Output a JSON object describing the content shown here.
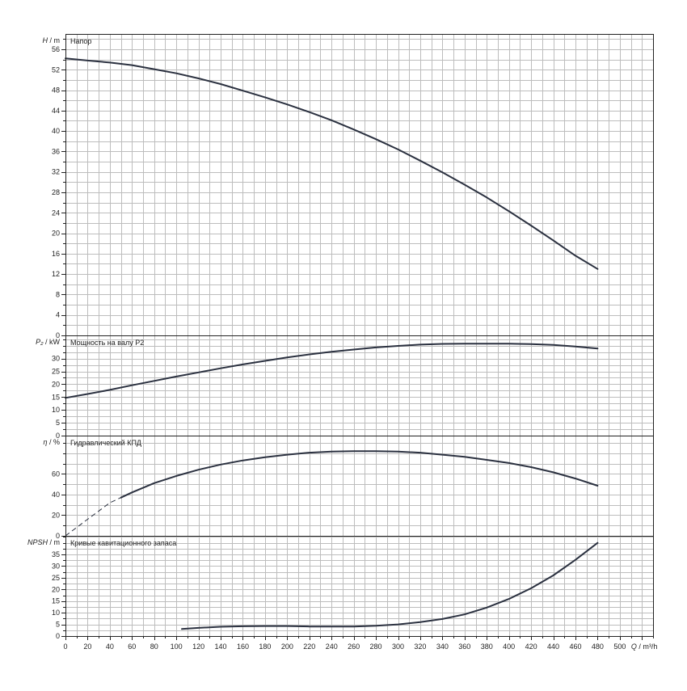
{
  "chart_data": [
    {
      "type": "line",
      "title": "Напор",
      "ylabel_sym": "H",
      "ylabel_unit": "/ m",
      "ylim": [
        0,
        59
      ],
      "yticks": [
        0,
        4,
        8,
        12,
        16,
        20,
        24,
        28,
        32,
        36,
        40,
        44,
        48,
        52,
        56
      ],
      "grid": true,
      "series": [
        {
          "x": [
            0,
            20,
            40,
            60,
            80,
            100,
            120,
            140,
            160,
            180,
            200,
            220,
            240,
            260,
            280,
            300,
            320,
            340,
            360,
            380,
            400,
            420,
            440,
            460,
            480
          ],
          "y": [
            54.2,
            53.8,
            53.4,
            52.9,
            52.1,
            51.3,
            50.3,
            49.2,
            47.9,
            46.6,
            45.2,
            43.7,
            42.1,
            40.3,
            38.4,
            36.4,
            34.2,
            31.9,
            29.5,
            27.0,
            24.3,
            21.5,
            18.6,
            15.6,
            13.0
          ]
        }
      ]
    },
    {
      "type": "line",
      "title": "Мощность на валу P2",
      "ylabel_sym": "P₂",
      "ylabel_unit": "/ kW",
      "ylim": [
        0,
        39
      ],
      "yticks": [
        0,
        5,
        10,
        15,
        20,
        25,
        30
      ],
      "grid": true,
      "series": [
        {
          "x": [
            0,
            20,
            40,
            60,
            80,
            100,
            120,
            140,
            160,
            180,
            200,
            220,
            240,
            260,
            280,
            300,
            320,
            340,
            360,
            380,
            400,
            420,
            440,
            460,
            480
          ],
          "y": [
            14.7,
            16.2,
            17.8,
            19.6,
            21.3,
            23.0,
            24.6,
            26.2,
            27.7,
            29.1,
            30.4,
            31.6,
            32.6,
            33.5,
            34.3,
            34.9,
            35.4,
            35.7,
            35.8,
            35.8,
            35.8,
            35.6,
            35.3,
            34.7,
            33.9
          ]
        }
      ]
    },
    {
      "type": "line",
      "title": "Гидравлический КПД",
      "ylabel_sym": "η",
      "ylabel_unit": "/ %",
      "ylim": [
        0,
        97
      ],
      "yticks": [
        0,
        20,
        40,
        60
      ],
      "grid": true,
      "series": [
        {
          "style": "dashed",
          "x": [
            0,
            10,
            20,
            30,
            40,
            50
          ],
          "y": [
            0,
            8,
            16,
            24,
            32,
            37
          ]
        },
        {
          "style": "solid",
          "x": [
            50,
            60,
            80,
            100,
            120,
            140,
            160,
            180,
            200,
            220,
            240,
            260,
            280,
            300,
            320,
            340,
            360,
            380,
            400,
            420,
            440,
            460,
            480
          ],
          "y": [
            37,
            42,
            51,
            58,
            64,
            69,
            73,
            76,
            78.5,
            80.5,
            81.5,
            82,
            82,
            81.5,
            80.5,
            78.5,
            76.5,
            73.5,
            70.5,
            66.5,
            61.5,
            55.5,
            48.5
          ]
        }
      ]
    },
    {
      "type": "line",
      "title": "Кривые кавитационного запаса",
      "ylabel_sym": "NPSH",
      "ylabel_unit": "/ m",
      "ylim": [
        0,
        43
      ],
      "yticks": [
        0,
        5,
        10,
        15,
        20,
        25,
        30,
        35
      ],
      "grid": true,
      "series": [
        {
          "x": [
            105,
            120,
            140,
            160,
            180,
            200,
            220,
            240,
            260,
            280,
            300,
            320,
            340,
            360,
            380,
            400,
            420,
            440,
            460,
            480
          ],
          "y": [
            3.0,
            3.5,
            4.0,
            4.2,
            4.3,
            4.3,
            4.1,
            4.1,
            4.1,
            4.4,
            5.0,
            6.0,
            7.3,
            9.3,
            12.2,
            15.9,
            20.5,
            26.0,
            32.7,
            40.0
          ]
        }
      ]
    }
  ],
  "x_axis": {
    "range": [
      0,
      530
    ],
    "ticks": [
      0,
      20,
      40,
      60,
      80,
      100,
      120,
      140,
      160,
      180,
      200,
      220,
      240,
      260,
      280,
      300,
      320,
      340,
      360,
      380,
      400,
      420,
      440,
      460,
      480,
      500
    ],
    "label_sym": "Q",
    "label_unit": "/ m³/h"
  },
  "colors": {
    "curve": "#2b3140",
    "grid": "#bdbdbd",
    "frame": "#222222"
  }
}
